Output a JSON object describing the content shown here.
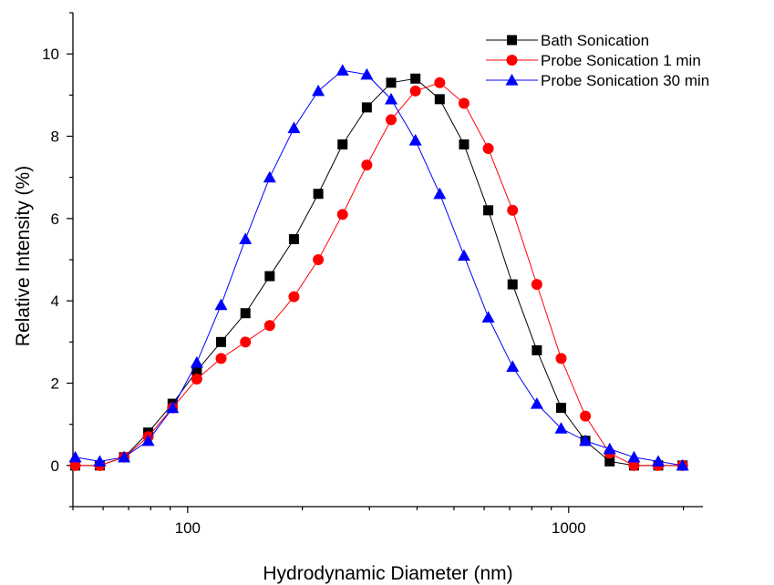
{
  "chart_data": {
    "type": "line",
    "x_scale": "log",
    "xlabel": "Hydrodynamic Diameter (nm)",
    "ylabel": "Relative Intensity (%)",
    "xlim": [
      50,
      2250
    ],
    "ylim": [
      -1,
      11
    ],
    "x_ticks": [
      100,
      1000
    ],
    "x_tick_labels": [
      "100",
      "1000"
    ],
    "y_ticks": [
      0,
      2,
      4,
      6,
      8,
      10
    ],
    "y_tick_labels": [
      "0",
      "2",
      "4",
      "6",
      "8",
      "10"
    ],
    "grid": false,
    "legend_position": "top-right",
    "series": [
      {
        "name": "Bath Sonication",
        "color": "#000000",
        "marker": "square",
        "x": [
          50.7,
          58.8,
          68.1,
          78.8,
          91.3,
          105.7,
          122.4,
          141.8,
          164.2,
          190.1,
          220.2,
          255.0,
          295.3,
          342.0,
          396.1,
          458.7,
          531.2,
          615.1,
          712.4,
          825.0,
          955.4,
          1106.0,
          1281.0,
          1484.0,
          1718.0,
          1990.0
        ],
        "y": [
          0,
          0,
          0.2,
          0.8,
          1.5,
          2.3,
          3.0,
          3.7,
          4.6,
          5.5,
          6.6,
          7.8,
          8.7,
          9.3,
          9.4,
          8.9,
          7.8,
          6.2,
          4.4,
          2.8,
          1.4,
          0.6,
          0.1,
          0,
          0,
          0
        ]
      },
      {
        "name": "Probe Sonication 1 min",
        "color": "#ff0000",
        "marker": "circle",
        "x": [
          50.7,
          58.8,
          68.1,
          78.8,
          91.3,
          105.7,
          122.4,
          141.8,
          164.2,
          190.1,
          220.2,
          255.0,
          295.3,
          342.0,
          396.1,
          458.7,
          531.2,
          615.1,
          712.4,
          825.0,
          955.4,
          1106.0,
          1281.0,
          1484.0,
          1718.0,
          1990.0
        ],
        "y": [
          0,
          0,
          0.2,
          0.7,
          1.4,
          2.1,
          2.6,
          3.0,
          3.4,
          4.1,
          5.0,
          6.1,
          7.3,
          8.4,
          9.1,
          9.3,
          8.8,
          7.7,
          6.2,
          4.4,
          2.6,
          1.2,
          0.3,
          0,
          0,
          0
        ]
      },
      {
        "name": "Probe Sonication 30 min",
        "color": "#0000ff",
        "marker": "triangle",
        "x": [
          50.7,
          58.8,
          68.1,
          78.8,
          91.3,
          105.7,
          122.4,
          141.8,
          164.2,
          190.1,
          220.2,
          255.0,
          295.3,
          342.0,
          396.1,
          458.7,
          531.2,
          615.1,
          712.4,
          825.0,
          955.4,
          1106.0,
          1281.0,
          1484.0,
          1718.0,
          1990.0
        ],
        "y": [
          0.2,
          0.1,
          0.2,
          0.6,
          1.4,
          2.5,
          3.9,
          5.5,
          7.0,
          8.2,
          9.1,
          9.6,
          9.5,
          8.9,
          7.9,
          6.6,
          5.1,
          3.6,
          2.4,
          1.5,
          0.9,
          0.6,
          0.4,
          0.2,
          0.1,
          0
        ]
      }
    ]
  }
}
